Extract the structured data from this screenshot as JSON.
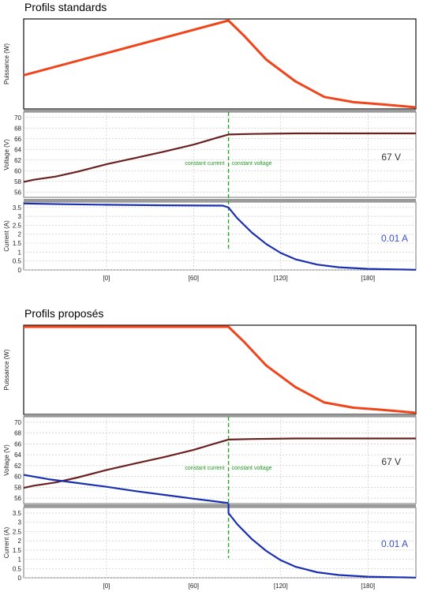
{
  "chart_data": [
    {
      "section_title": "Profils standards",
      "type": "line",
      "x_tick_labels": [
        "[0]",
        "[60]",
        "[120]",
        "[180]"
      ],
      "x_tick_values": [
        0,
        60,
        120,
        180
      ],
      "xlim": [
        -57,
        213
      ],
      "cv_transition_x": 84,
      "mode_labels": [
        "constant current",
        "constant voltage"
      ],
      "power": {
        "ylabel": "Puissance (W)",
        "ylim": [
          0,
          1
        ],
        "color": "#f0441a",
        "x": [
          -57,
          84,
          95,
          110,
          130,
          150,
          170,
          190,
          213
        ],
        "y": [
          0.37,
          1.0,
          0.82,
          0.55,
          0.3,
          0.12,
          0.06,
          0.035,
          0.0
        ]
      },
      "voltage": {
        "ylabel": "Voltage (V)",
        "ylim": [
          55,
          71
        ],
        "ticks": [
          56,
          58,
          60,
          62,
          64,
          66,
          68,
          70
        ],
        "color": "#6b2020",
        "readout": "67 V",
        "x": [
          -57,
          -50,
          -35,
          -20,
          0,
          20,
          40,
          60,
          75,
          84,
          100,
          130,
          160,
          190,
          213
        ],
        "y": [
          57.9,
          58.3,
          58.9,
          59.8,
          61.2,
          62.4,
          63.6,
          64.9,
          66.1,
          66.8,
          66.9,
          67.0,
          67.0,
          67.0,
          67.0
        ]
      },
      "current": {
        "ylabel": "Current (A)",
        "ylim": [
          0,
          3.8
        ],
        "ticks": [
          0,
          0.5,
          1,
          1.5,
          2,
          2.5,
          3,
          3.5
        ],
        "color": "#1a2fb0",
        "readout": "0.01 A",
        "x": [
          -57,
          -30,
          0,
          40,
          80,
          84,
          90,
          100,
          110,
          120,
          130,
          145,
          160,
          180,
          200,
          213
        ],
        "y": [
          3.72,
          3.68,
          3.65,
          3.62,
          3.6,
          3.5,
          2.9,
          2.1,
          1.45,
          0.95,
          0.6,
          0.3,
          0.15,
          0.06,
          0.03,
          0.01
        ]
      }
    },
    {
      "section_title": "Profils proposés",
      "type": "line",
      "x_tick_labels": [
        "[0]",
        "[60]",
        "[120]",
        "[180]"
      ],
      "x_tick_values": [
        0,
        60,
        120,
        180
      ],
      "xlim": [
        -57,
        213
      ],
      "cv_transition_x": 84,
      "mode_labels": [
        "constant current",
        "constant voltage"
      ],
      "power": {
        "ylabel": "Puissance (W)",
        "ylim": [
          0,
          1
        ],
        "color": "#f0441a",
        "x": [
          -57,
          84,
          95,
          110,
          130,
          150,
          170,
          190,
          213
        ],
        "y": [
          1.0,
          1.0,
          0.82,
          0.55,
          0.3,
          0.12,
          0.06,
          0.035,
          0.0
        ]
      },
      "voltage": {
        "ylabel": "Voltage (V)",
        "ylim": [
          55,
          71
        ],
        "ticks": [
          56,
          58,
          60,
          62,
          64,
          66,
          68,
          70
        ],
        "color": "#6b2020",
        "readout": "67 V",
        "x": [
          -57,
          -50,
          -35,
          -20,
          0,
          20,
          40,
          60,
          75,
          84,
          100,
          130,
          160,
          190,
          213
        ],
        "y": [
          57.9,
          58.3,
          58.9,
          59.8,
          61.2,
          62.4,
          63.6,
          64.9,
          66.1,
          66.8,
          66.9,
          67.0,
          67.0,
          67.0,
          67.0
        ]
      },
      "current": {
        "ylabel": "Current (A)",
        "ylim": [
          0,
          3.8
        ],
        "ticks": [
          0,
          0.5,
          1,
          1.5,
          2,
          2.5,
          3,
          3.5
        ],
        "color": "#1a2fb0",
        "readout": "0.01 A",
        "overlay_in_voltage_x": [
          -57,
          -40,
          -20,
          0,
          20,
          40,
          60,
          84
        ],
        "overlay_in_voltage_y": [
          60.3,
          59.5,
          58.8,
          58.1,
          57.3,
          56.6,
          55.9,
          55.1
        ],
        "x": [
          84,
          90,
          100,
          110,
          120,
          130,
          145,
          160,
          180,
          200,
          213
        ],
        "y": [
          3.5,
          2.9,
          2.1,
          1.45,
          0.95,
          0.6,
          0.3,
          0.15,
          0.06,
          0.03,
          0.01
        ]
      }
    }
  ]
}
